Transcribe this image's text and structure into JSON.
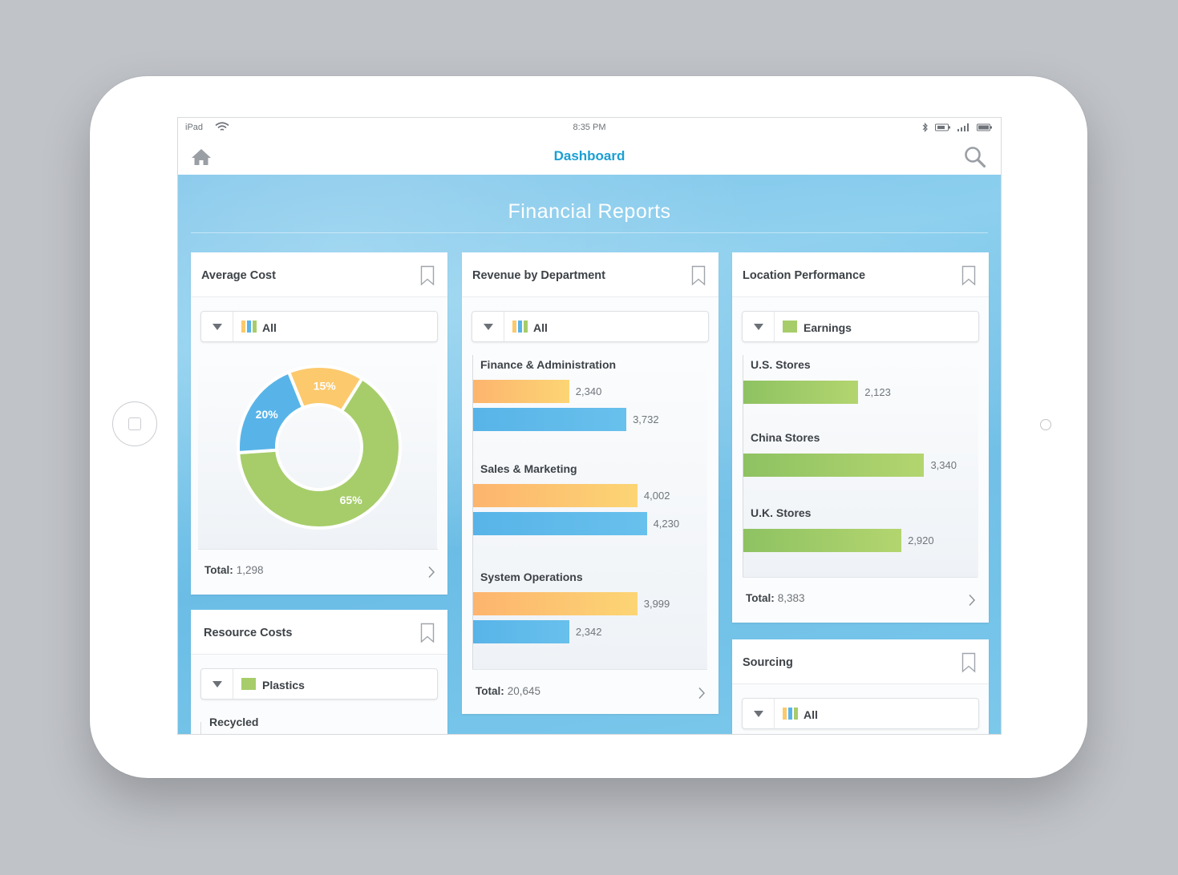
{
  "device": {
    "carrier": "iPad",
    "clock": "8:35 PM"
  },
  "nav": {
    "title": "Dashboard"
  },
  "page": {
    "heading": "Financial Reports"
  },
  "colors": {
    "accent": "#1a9fd4",
    "orange": "#fdb46e",
    "blue": "#58b4e8",
    "green": "#8ec262",
    "yellow": "#fcc96c"
  },
  "cards": {
    "average_cost": {
      "title": "Average Cost",
      "filter": "All",
      "total_label": "Total:",
      "total_value": "1,298"
    },
    "revenue": {
      "title": "Revenue by Department",
      "filter": "All",
      "total_label": "Total:",
      "total_value": "20,645"
    },
    "location": {
      "title": "Location Performance",
      "filter": "Earnings",
      "total_label": "Total:",
      "total_value": "8,383"
    },
    "resource": {
      "title": "Resource Costs",
      "filter": "Plastics",
      "first_group": "Recycled"
    },
    "sourcing": {
      "title": "Sourcing",
      "filter": "All"
    }
  },
  "chart_data": [
    {
      "type": "pie",
      "variant": "donut",
      "slices": [
        {
          "label": "65%",
          "value": 65,
          "color": "#a6cd6a"
        },
        {
          "label": "20%",
          "value": 20,
          "color": "#58b4e8"
        },
        {
          "label": "15%",
          "value": 15,
          "color": "#fcc96c"
        }
      ]
    },
    {
      "type": "bar",
      "orientation": "horizontal",
      "categories": [
        "Finance & Administration",
        "Sales & Marketing",
        "System Operations"
      ],
      "series": [
        {
          "values": [
            2340,
            4002,
            3999
          ],
          "labels": [
            "2,340",
            "4,002",
            "3,999"
          ],
          "color": "#fdb46e"
        },
        {
          "values": [
            3732,
            4230,
            2342
          ],
          "labels": [
            "3,732",
            "4,230",
            "2,342"
          ],
          "color": "#58b4e8"
        }
      ]
    },
    {
      "type": "bar",
      "orientation": "horizontal",
      "categories": [
        "U.S. Stores",
        "China Stores",
        "U.K. Stores"
      ],
      "series": [
        {
          "name": "Earnings",
          "values": [
            2123,
            3340,
            2920
          ],
          "labels": [
            "2,123",
            "3,340",
            "2,920"
          ],
          "color": "#8ec262"
        }
      ]
    }
  ]
}
